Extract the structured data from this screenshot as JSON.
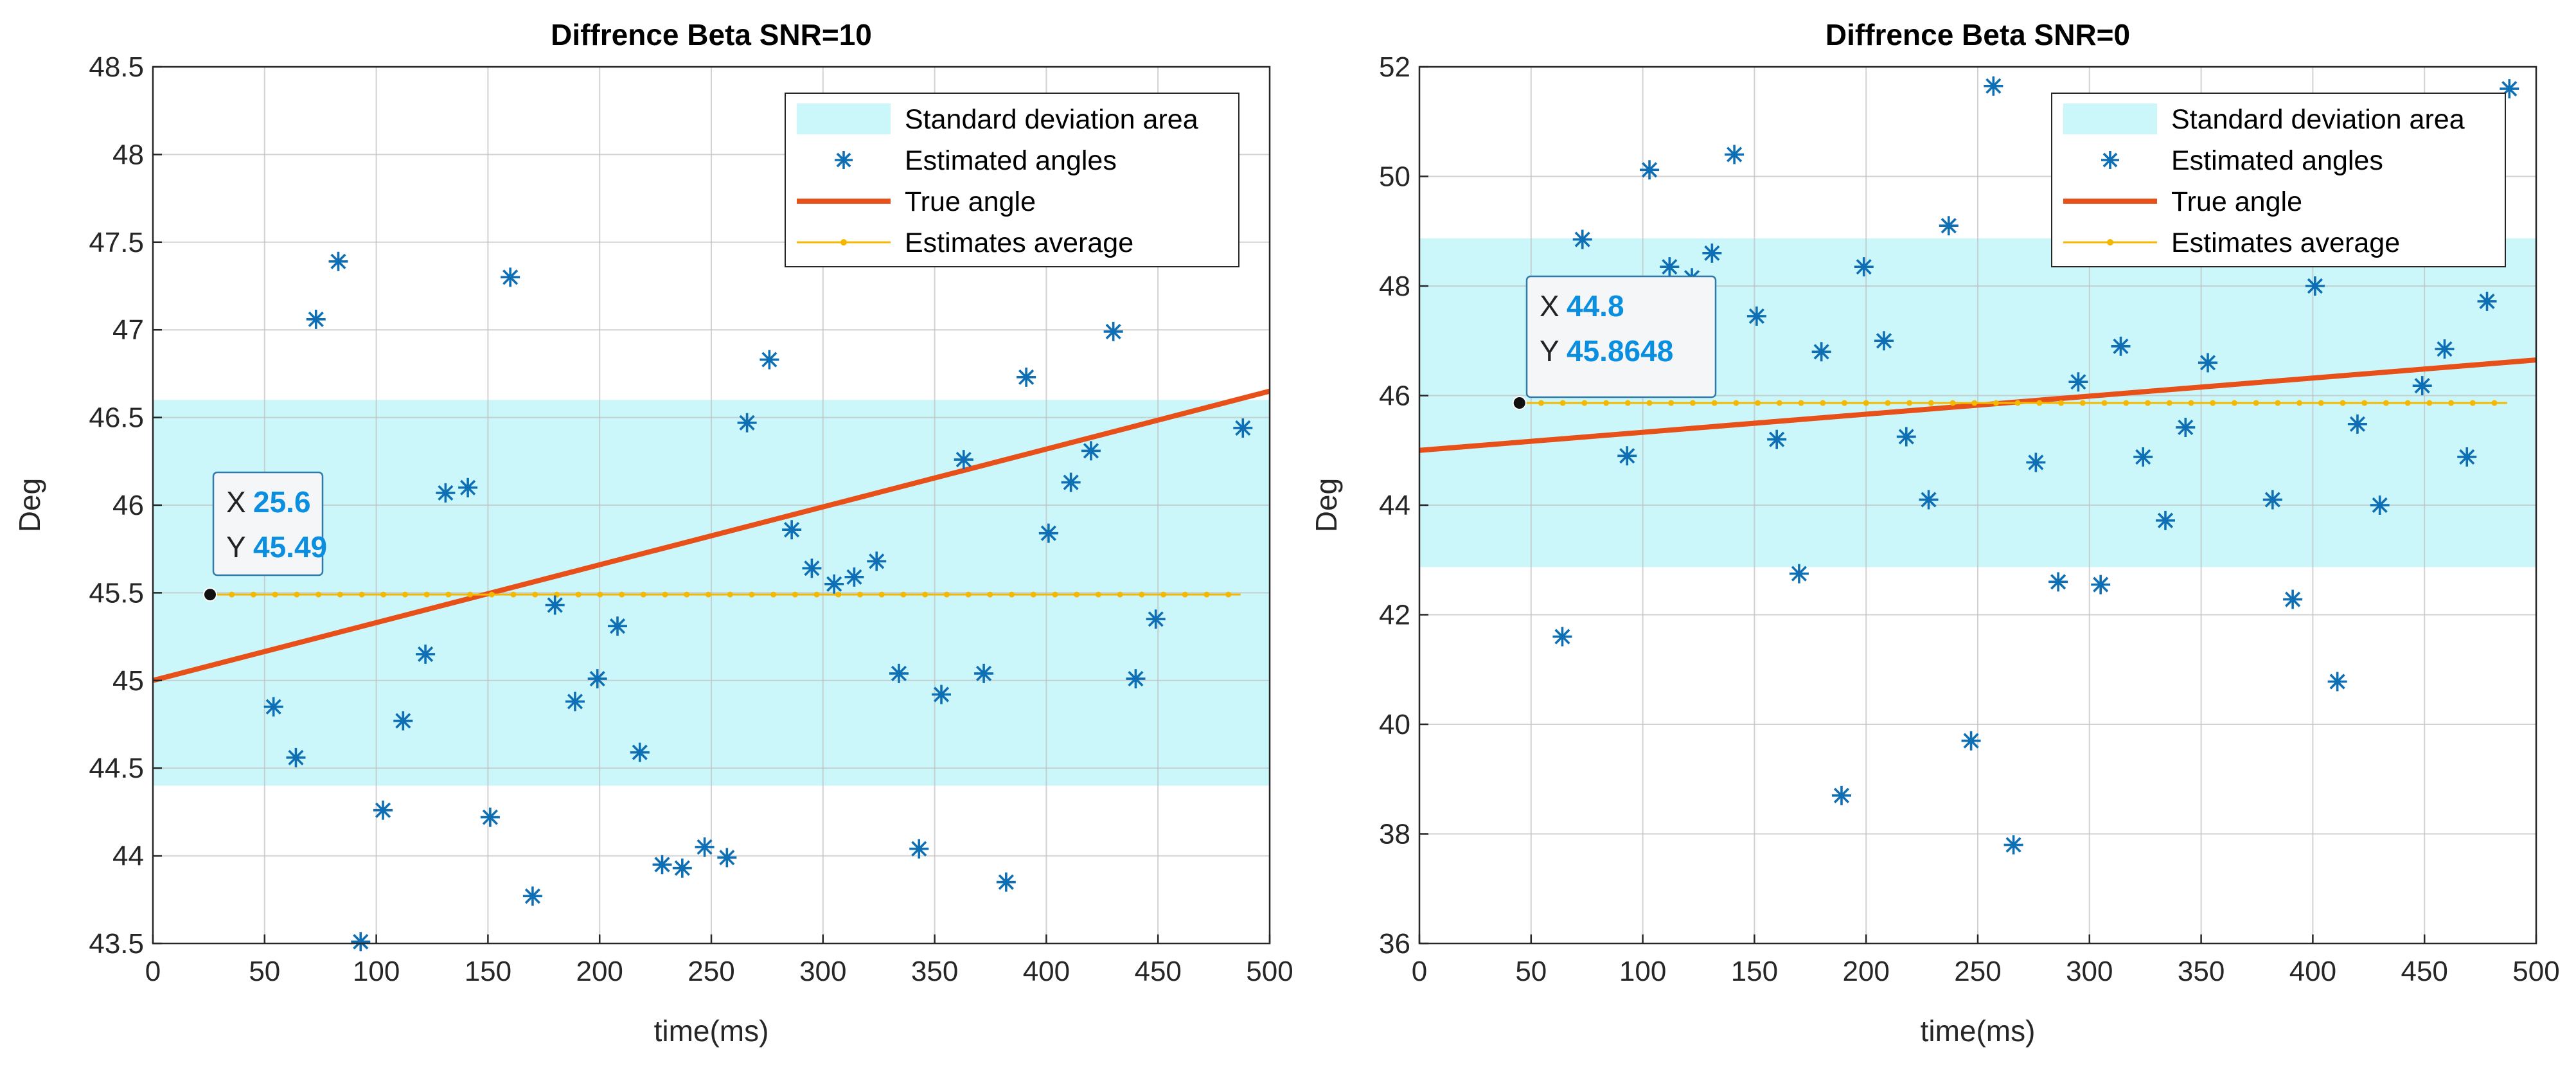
{
  "colors": {
    "std_area": "#ccf7fa",
    "estimates": "#0e6fb4",
    "true_angle": "#e8501a",
    "average": "#f5b800",
    "grid": "#bfbfbf",
    "tooltip_border": "#2e7aa8",
    "tooltip_bg": "#f4f6f8"
  },
  "chart_data": [
    {
      "type": "scatter",
      "title": "Diffrence Beta SNR=10",
      "xlabel": "time(ms)",
      "ylabel": "Deg",
      "xlim": [
        0,
        500
      ],
      "ylim": [
        43.5,
        48.5
      ],
      "xticks": [
        0,
        50,
        100,
        150,
        200,
        250,
        300,
        350,
        400,
        450,
        500
      ],
      "yticks": [
        43.5,
        44,
        44.5,
        45,
        45.5,
        46,
        46.5,
        47,
        47.5,
        48,
        48.5
      ],
      "ytick_labels": [
        "43.5",
        "44",
        "44.5",
        "45",
        "45.5",
        "46",
        "46.5",
        "47",
        "47.5",
        "48",
        "48.5"
      ],
      "grid": true,
      "legend": {
        "position": "top-right",
        "entries": [
          "Standard deviation area",
          "Estimated angles",
          "True angle",
          "Estimates average"
        ]
      },
      "std_area": [
        44.4,
        46.6
      ],
      "true_angle": {
        "x": [
          0,
          500
        ],
        "y": [
          45.0,
          46.65
        ]
      },
      "average": {
        "value": 45.49,
        "x_start": 25.6,
        "x_end": 487,
        "step": 9.7
      },
      "datatip": {
        "x_label": "X",
        "x_value": "25.6",
        "y_label": "Y",
        "y_value": "45.49",
        "x": 25.6,
        "y": 45.49
      },
      "estimates": {
        "x": [
          54,
          64,
          73,
          83,
          93,
          103,
          112,
          122,
          131,
          141,
          151,
          160,
          170,
          180,
          189,
          199,
          208,
          218,
          228,
          237,
          247,
          257,
          266,
          276,
          286,
          295,
          305,
          314,
          324,
          334,
          343,
          353,
          363,
          372,
          382,
          391,
          401,
          411,
          420,
          430,
          440,
          449,
          488
        ],
        "y": [
          44.85,
          44.56,
          47.06,
          47.39,
          43.51,
          44.26,
          44.77,
          45.15,
          46.07,
          46.1,
          44.22,
          47.3,
          43.77,
          45.43,
          44.88,
          45.01,
          45.31,
          44.59,
          43.95,
          43.93,
          44.05,
          43.99,
          46.47,
          46.83,
          45.86,
          45.64,
          45.55,
          45.59,
          45.68,
          45.04,
          44.04,
          44.92,
          46.26,
          45.04,
          43.85,
          46.73,
          45.84,
          46.13,
          46.31,
          46.99,
          45.01,
          45.35,
          46.44
        ]
      }
    },
    {
      "type": "scatter",
      "title": "Diffrence Beta SNR=0",
      "xlabel": "time(ms)",
      "ylabel": "Deg",
      "xlim": [
        0,
        500
      ],
      "ylim": [
        36,
        52
      ],
      "xticks": [
        0,
        50,
        100,
        150,
        200,
        250,
        300,
        350,
        400,
        450,
        500
      ],
      "yticks": [
        36,
        38,
        40,
        42,
        44,
        46,
        48,
        50,
        52
      ],
      "ytick_labels": [
        "36",
        "38",
        "40",
        "42",
        "44",
        "46",
        "48",
        "50",
        "52"
      ],
      "grid": true,
      "legend": {
        "position": "top-right",
        "entries": [
          "Standard deviation area",
          "Estimated angles",
          "True angle",
          "Estimates average"
        ]
      },
      "std_area": [
        42.87,
        48.87
      ],
      "true_angle": {
        "x": [
          0,
          500
        ],
        "y": [
          45.0,
          46.65
        ]
      },
      "average": {
        "value": 45.8648,
        "x_start": 44.8,
        "x_end": 487,
        "step": 9.7
      },
      "datatip": {
        "x_label": "X",
        "x_value": "44.8",
        "y_label": "Y",
        "y_value": "45.8648",
        "x": 44.8,
        "y": 45.8648
      },
      "estimates": {
        "x": [
          64,
          73,
          93,
          103,
          112,
          122,
          131,
          141,
          151,
          160,
          170,
          180,
          199,
          208,
          218,
          228,
          237,
          247,
          257,
          266,
          276,
          286,
          295,
          305,
          314,
          324,
          334,
          343,
          353,
          382,
          391,
          401,
          411,
          420,
          430,
          449,
          459,
          469,
          478,
          488,
          189
        ],
        "y": [
          41.6,
          48.85,
          44.9,
          50.12,
          48.35,
          48.15,
          48.6,
          50.4,
          47.45,
          45.2,
          42.75,
          46.8,
          48.35,
          47.0,
          45.25,
          44.1,
          49.1,
          39.7,
          51.65,
          37.8,
          44.78,
          42.6,
          46.25,
          42.55,
          46.9,
          44.88,
          43.72,
          45.42,
          46.6,
          44.1,
          42.28,
          48.0,
          40.78,
          45.48,
          44.0,
          46.18,
          46.85,
          44.88,
          47.72,
          51.6,
          38.7
        ]
      }
    }
  ]
}
